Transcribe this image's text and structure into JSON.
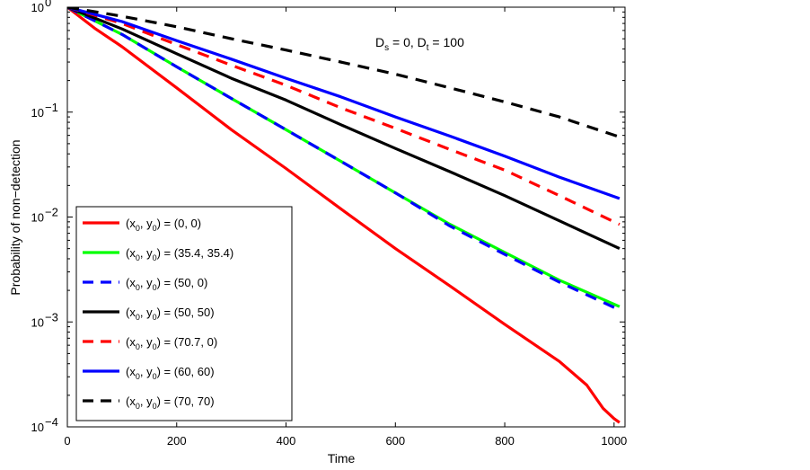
{
  "chart_data": {
    "type": "line",
    "title": "",
    "xlabel": "Time",
    "ylabel": "Probability of non−detection",
    "xlim": [
      0,
      1020
    ],
    "ylim": [
      0.0001,
      1
    ],
    "yscale": "log",
    "x_ticks": [
      0,
      200,
      400,
      600,
      800,
      1000
    ],
    "x_tick_labels": [
      "0",
      "200",
      "400",
      "600",
      "800",
      "1000"
    ],
    "y_ticks": [
      0.0001,
      0.001,
      0.01,
      0.1,
      1
    ],
    "y_tick_labels": [
      {
        "base": "10",
        "exp": "−4"
      },
      {
        "base": "10",
        "exp": "−3"
      },
      {
        "base": "10",
        "exp": "−2"
      },
      {
        "base": "10",
        "exp": "−1"
      },
      {
        "base": "10",
        "exp": "0"
      }
    ],
    "annotation": {
      "text1": "D",
      "sub1": "s",
      "text2": " = 0, D",
      "sub2": "t",
      "text3": " = 100"
    },
    "legend_location": "lower-left",
    "series": [
      {
        "name": "(x0, y0) = (0, 0)",
        "label_value": "(0, 0)",
        "color": "#ff0000",
        "dash": "solid",
        "x": [
          0,
          50,
          100,
          200,
          300,
          400,
          500,
          600,
          700,
          800,
          900,
          950,
          980,
          1000,
          1010
        ],
        "y": [
          1,
          0.63,
          0.42,
          0.17,
          0.068,
          0.029,
          0.012,
          0.005,
          0.0022,
          0.00095,
          0.00042,
          0.00025,
          0.00015,
          0.00012,
          0.00011
        ]
      },
      {
        "name": "(x0, y0) = (35.4, 35.4)",
        "label_value": "(35.4, 35.4)",
        "color": "#00ff00",
        "dash": "solid",
        "x": [
          0,
          100,
          200,
          300,
          400,
          500,
          600,
          700,
          800,
          900,
          1010
        ],
        "y": [
          1,
          0.55,
          0.27,
          0.135,
          0.068,
          0.034,
          0.017,
          0.0085,
          0.0046,
          0.0025,
          0.0014
        ]
      },
      {
        "name": "(x0, y0) = (50, 0)",
        "label_value": "(50, 0)",
        "color": "#0000ff",
        "dash": "dashed",
        "x": [
          0,
          100,
          200,
          300,
          400,
          500,
          600,
          700,
          800,
          900,
          1010
        ],
        "y": [
          1,
          0.55,
          0.27,
          0.135,
          0.068,
          0.034,
          0.017,
          0.0082,
          0.0044,
          0.0024,
          0.0013
        ]
      },
      {
        "name": "(x0, y0) = (50, 50)",
        "label_value": "(50, 50)",
        "color": "#000000",
        "dash": "solid",
        "x": [
          0,
          100,
          200,
          300,
          400,
          500,
          600,
          700,
          800,
          900,
          1010
        ],
        "y": [
          1,
          0.62,
          0.36,
          0.21,
          0.13,
          0.076,
          0.045,
          0.027,
          0.016,
          0.0092,
          0.005
        ]
      },
      {
        "name": "(x0, y0) = (70.7, 0)",
        "label_value": "(70.7, 0)",
        "color": "#ff0000",
        "dash": "dashed",
        "x": [
          0,
          100,
          200,
          300,
          400,
          500,
          600,
          700,
          800,
          900,
          1010
        ],
        "y": [
          1,
          0.7,
          0.44,
          0.28,
          0.18,
          0.11,
          0.07,
          0.044,
          0.028,
          0.016,
          0.0085
        ]
      },
      {
        "name": "(x0, y0) = (60, 60)",
        "label_value": "(60, 60)",
        "color": "#0000ff",
        "dash": "solid",
        "x": [
          0,
          100,
          200,
          300,
          400,
          500,
          600,
          700,
          800,
          900,
          1010
        ],
        "y": [
          1,
          0.73,
          0.48,
          0.32,
          0.21,
          0.14,
          0.09,
          0.059,
          0.038,
          0.024,
          0.015
        ]
      },
      {
        "name": "(x0, y0) = (70, 70)",
        "label_value": "(70, 70)",
        "color": "#000000",
        "dash": "dashed",
        "x": [
          0,
          100,
          200,
          300,
          400,
          500,
          600,
          700,
          800,
          900,
          1010
        ],
        "y": [
          1,
          0.82,
          0.65,
          0.5,
          0.39,
          0.3,
          0.23,
          0.17,
          0.125,
          0.09,
          0.058
        ]
      }
    ]
  }
}
